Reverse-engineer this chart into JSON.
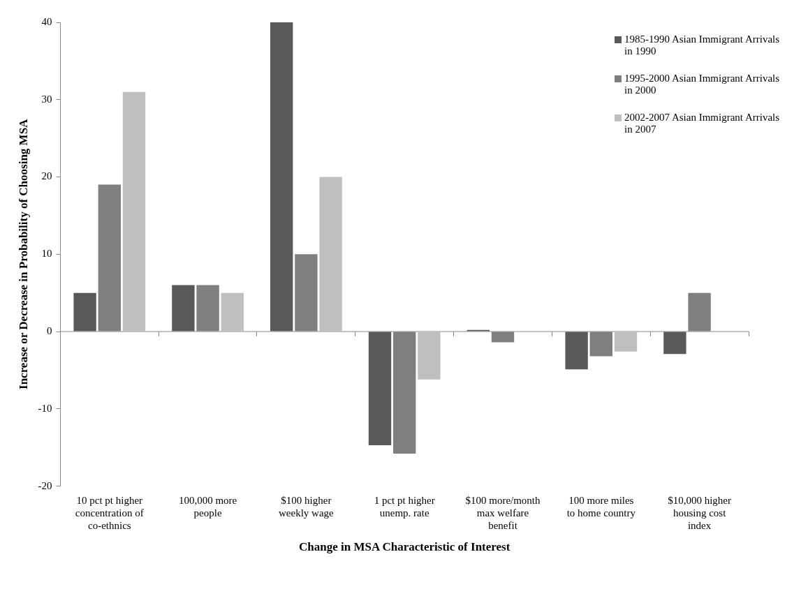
{
  "chart_data": {
    "type": "bar",
    "xlabel": "Change in MSA Characteristic of Interest",
    "ylabel": "Increase or Decrease in Probability of Choosing MSA",
    "categories": [
      "10 pct pt higher concentration of co-ethnics",
      "100,000 more people",
      "$100 higher weekly wage",
      "1 pct pt higher unemp. rate",
      "$100 more/month max welfare benefit",
      "100 more miles to home country",
      "$10,000 higher housing cost index"
    ],
    "series": [
      {
        "name": "1985-1990 Asian Immigrant Arrivals in 1990",
        "color": "#595959",
        "values": [
          5,
          6,
          40,
          -14.7,
          0.2,
          -4.9,
          -2.9
        ]
      },
      {
        "name": "1995-2000 Asian Immigrant Arrivals in 2000",
        "color": "#7f7f7f",
        "values": [
          19,
          6,
          10,
          -15.8,
          -1.4,
          -3.2,
          5
        ]
      },
      {
        "name": "2002-2007 Asian Immigrant Arrivals in 2007",
        "color": "#bfbfbf",
        "values": [
          31,
          5,
          20,
          -6.2,
          null,
          -2.6,
          null
        ]
      }
    ],
    "ref_lines": [
      {
        "axis": "y",
        "value": 0,
        "color": "#888888"
      }
    ],
    "ylim": [
      -20,
      40
    ],
    "yticks": [
      -20,
      -10,
      0,
      10,
      20,
      30,
      40
    ],
    "grid": false,
    "legend": "top right"
  }
}
